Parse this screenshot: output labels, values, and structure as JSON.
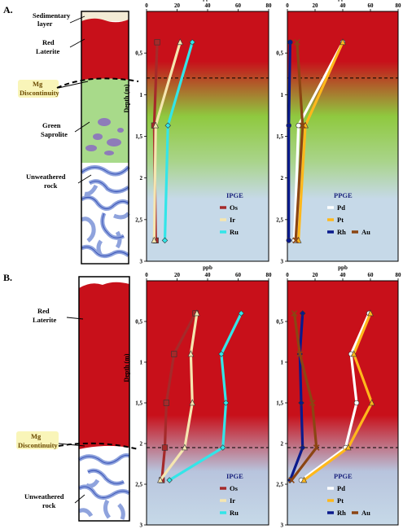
{
  "panels": [
    {
      "label": "A.",
      "column_labels": [
        {
          "text": "Sedimentary layer",
          "lines": [
            "Sedimentary",
            "layer"
          ]
        },
        {
          "text": "Red Laterite",
          "lines": [
            "Red",
            "Laterite"
          ]
        },
        {
          "text": "Mg Discontinuity",
          "lines": [
            "Mg",
            "Discontinuity"
          ],
          "highlight": true
        },
        {
          "text": "Green Saprolite",
          "lines": [
            "Green",
            "Saprolite"
          ]
        },
        {
          "text": "Unweathered rock",
          "lines": [
            "Unweathered",
            "rock"
          ]
        }
      ]
    },
    {
      "label": "B.",
      "column_labels": [
        {
          "text": "Red Laterite",
          "lines": [
            "Red",
            "Laterite"
          ]
        },
        {
          "text": "Mg Discontinuity",
          "lines": [
            "Mg",
            "Discontinuity"
          ],
          "highlight": true
        },
        {
          "text": "Unweathered rock",
          "lines": [
            "Unweathered",
            "rock"
          ]
        }
      ]
    }
  ],
  "colors": {
    "laterite_red": "#c8101a",
    "saprolite_green": "#a8da8a",
    "rock_fill": "#ffffff",
    "rock_veins": "#8fa3dd",
    "Os": "#a52a2a",
    "Ir": "#f5e6b0",
    "Ru": "#33e5e8",
    "Pd": "#ffffff",
    "Pt": "#ffb81c",
    "Rh": "#0a1a8c",
    "Au": "#8b4513"
  },
  "chart_data": [
    {
      "type": "line",
      "panel": "A",
      "legend_title": "IPGE",
      "xlabel": "ppb",
      "ylabel": "Depth (m)",
      "xlim": [
        0,
        80
      ],
      "ylim": [
        0,
        3
      ],
      "x_ticks": [
        0,
        20,
        40,
        60,
        80
      ],
      "y_ticks": [
        0.5,
        1,
        1.5,
        2,
        2.5,
        3
      ],
      "y_tick_labels": [
        "0,5",
        "1",
        "1,5",
        "2",
        "2,5",
        "3"
      ],
      "y_inverted": true,
      "background": "red-green-blue gradient",
      "discontinuity_depth": 0.8,
      "series": [
        {
          "name": "Os",
          "marker": "square",
          "x": [
            7,
            5,
            6
          ],
          "y": [
            0.37,
            1.37,
            2.75
          ]
        },
        {
          "name": "Ir",
          "marker": "triangle",
          "x": [
            22,
            6,
            5
          ],
          "y": [
            0.37,
            1.37,
            2.75
          ]
        },
        {
          "name": "Ru",
          "marker": "diamond",
          "x": [
            30,
            14,
            12
          ],
          "y": [
            0.37,
            1.37,
            2.75
          ]
        }
      ]
    },
    {
      "type": "line",
      "panel": "A",
      "legend_title": "PPGE",
      "xlabel": "ppb",
      "xlim": [
        0,
        80
      ],
      "ylim": [
        0,
        3
      ],
      "x_ticks": [
        0,
        20,
        40,
        60,
        80
      ],
      "y_ticks": [
        0.5,
        1,
        1.5,
        2,
        2.5,
        3
      ],
      "y_tick_labels": [
        "0,5",
        "1",
        "1,5",
        "2",
        "2,5",
        "3"
      ],
      "y_inverted": true,
      "background": "red-green-blue gradient",
      "discontinuity_depth": 0.8,
      "series": [
        {
          "name": "Pd",
          "marker": "circle",
          "x": [
            40,
            8,
            5
          ],
          "y": [
            0.37,
            1.37,
            2.75
          ]
        },
        {
          "name": "Pt",
          "marker": "triangle",
          "x": [
            40,
            13,
            8
          ],
          "y": [
            0.37,
            1.37,
            2.75
          ]
        },
        {
          "name": "Rh",
          "marker": "circle",
          "x": [
            2,
            1,
            1
          ],
          "y": [
            0.37,
            1.37,
            2.75
          ]
        },
        {
          "name": "Au",
          "marker": "x",
          "x": [
            7,
            11,
            6
          ],
          "y": [
            0.37,
            1.37,
            2.75
          ]
        }
      ]
    },
    {
      "type": "line",
      "panel": "B",
      "legend_title": "IPGE",
      "xlabel": "ppb",
      "ylabel": "Depth (m)",
      "xlim": [
        0,
        80
      ],
      "ylim": [
        0,
        3
      ],
      "x_ticks": [
        0,
        20,
        40,
        60,
        80
      ],
      "y_ticks": [
        0.5,
        1,
        1.5,
        2,
        2.5,
        3
      ],
      "y_tick_labels": [
        "0,5",
        "1",
        "1,5",
        "2",
        "2,5",
        "3"
      ],
      "y_inverted": true,
      "background": "red-to-blue gradient",
      "discontinuity_depth": 2.05,
      "series": [
        {
          "name": "Os",
          "marker": "square",
          "x": [
            32,
            18,
            13,
            12,
            10
          ],
          "y": [
            0.4,
            0.9,
            1.5,
            2.05,
            2.45
          ]
        },
        {
          "name": "Ir",
          "marker": "triangle",
          "x": [
            33,
            29,
            30,
            25,
            9
          ],
          "y": [
            0.4,
            0.9,
            1.5,
            2.05,
            2.45
          ]
        },
        {
          "name": "Ru",
          "marker": "diamond",
          "x": [
            62,
            49,
            52,
            50,
            15
          ],
          "y": [
            0.4,
            0.9,
            1.5,
            2.05,
            2.45
          ]
        }
      ]
    },
    {
      "type": "line",
      "panel": "B",
      "legend_title": "PPGE",
      "xlabel": "ppb",
      "xlim": [
        0,
        80
      ],
      "ylim": [
        0,
        3
      ],
      "x_ticks": [
        0,
        20,
        40,
        60,
        80
      ],
      "y_ticks": [
        0.5,
        1,
        1.5,
        2,
        2.5,
        3
      ],
      "y_tick_labels": [
        "0,5",
        "1",
        "1,5",
        "2",
        "2,5",
        "3"
      ],
      "y_inverted": true,
      "background": "red-to-blue gradient",
      "discontinuity_depth": 2.05,
      "series": [
        {
          "name": "Pd",
          "marker": "circle",
          "x": [
            59,
            46,
            50,
            42,
            10
          ],
          "y": [
            0.4,
            0.9,
            1.5,
            2.05,
            2.45
          ]
        },
        {
          "name": "Pt",
          "marker": "triangle",
          "x": [
            60,
            48,
            61,
            44,
            12
          ],
          "y": [
            0.4,
            0.9,
            1.5,
            2.05,
            2.45
          ]
        },
        {
          "name": "Rh",
          "marker": "diamond",
          "x": [
            11,
            9,
            10,
            11,
            2
          ],
          "y": [
            0.4,
            0.9,
            1.5,
            2.05,
            2.45
          ]
        },
        {
          "name": "Au",
          "marker": "x",
          "x": [
            5,
            9,
            18,
            21,
            3
          ],
          "y": [
            0.4,
            0.9,
            1.5,
            2.05,
            2.45
          ]
        }
      ]
    }
  ]
}
